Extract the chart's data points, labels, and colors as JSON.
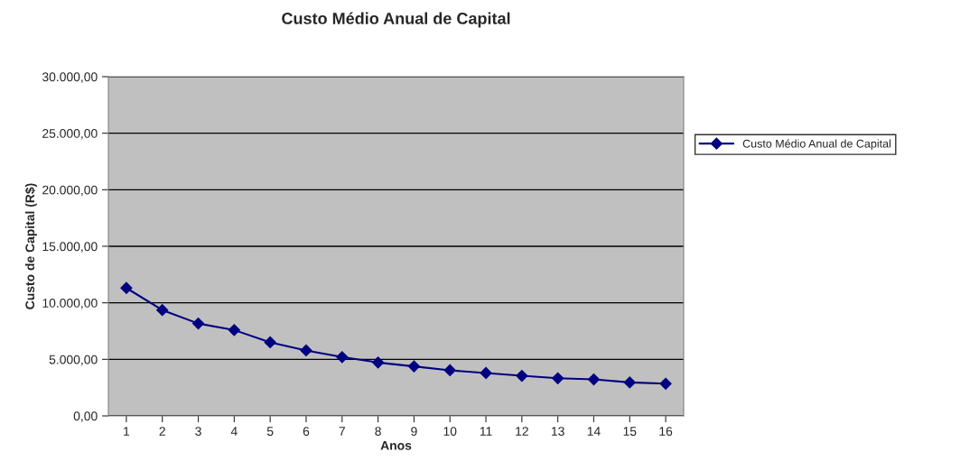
{
  "chart_data": {
    "type": "line",
    "title": "Custo Médio Anual de Capital",
    "xlabel": "Anos",
    "ylabel": "Custo de Capital (R$)",
    "categories": [
      "1",
      "2",
      "3",
      "4",
      "5",
      "6",
      "7",
      "8",
      "9",
      "10",
      "11",
      "12",
      "13",
      "14",
      "15",
      "16"
    ],
    "series": [
      {
        "name": "Custo Médio Anual de Capital",
        "color": "#000080",
        "values": [
          11310,
          9360,
          8170,
          7590,
          6510,
          5790,
          5200,
          4720,
          4380,
          4030,
          3790,
          3550,
          3330,
          3230,
          2960,
          2850
        ]
      }
    ],
    "ylim": [
      0,
      30000
    ],
    "yticks": [
      {
        "value": 0,
        "label": "0,00"
      },
      {
        "value": 5000,
        "label": "5.000,00"
      },
      {
        "value": 10000,
        "label": "10.000,00"
      },
      {
        "value": 15000,
        "label": "15.000,00"
      },
      {
        "value": 20000,
        "label": "20.000,00"
      },
      {
        "value": 25000,
        "label": "25.000,00"
      },
      {
        "value": 30000,
        "label": "30.000,00"
      }
    ],
    "grid": "y",
    "legend": "right",
    "marker": "diamond",
    "line_style": "solid"
  }
}
